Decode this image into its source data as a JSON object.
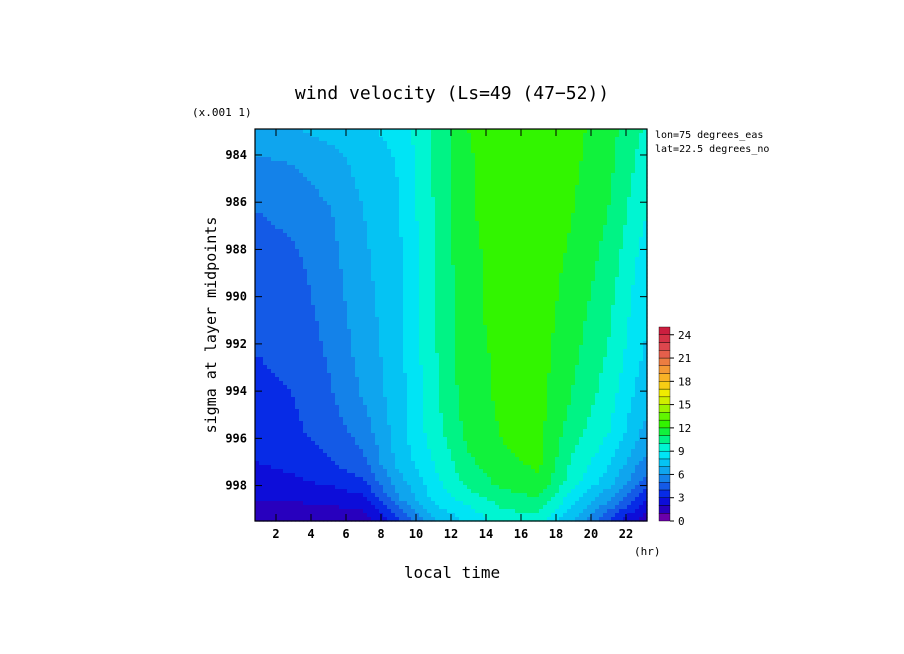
{
  "chart_data": {
    "type": "heatmap",
    "title": "wind velocity (Ls=49 (47−52))",
    "xlabel": "local time",
    "x_unit": "(hr)",
    "ylabel": "sigma at layer midpoints",
    "y_scale_note": "(x.001 1)",
    "annotations": [
      "lon=75 degrees_eas",
      "lat=22.5 degrees_no"
    ],
    "x_ticks": [
      "2",
      "4",
      "6",
      "8",
      "10",
      "12",
      "14",
      "16",
      "18",
      "20",
      "22"
    ],
    "y_ticks": [
      "984",
      "986",
      "988",
      "990",
      "992",
      "994",
      "996",
      "998"
    ],
    "xlim": [
      0.8,
      23.2
    ],
    "ylim": [
      999.5,
      982.9
    ],
    "colorbar": {
      "ticks": [
        "0",
        "3",
        "6",
        "9",
        "12",
        "15",
        "18",
        "21",
        "24"
      ],
      "range": [
        0,
        25
      ],
      "step": 1
    },
    "x": [
      1,
      3,
      5,
      7,
      9,
      11,
      13,
      15,
      17,
      19,
      21,
      23
    ],
    "y": [
      983,
      984.2,
      986.4,
      988.5,
      990.6,
      992.5,
      994.2,
      995.8,
      997,
      997.9,
      998.6,
      999.1,
      999.5
    ],
    "z": [
      [
        6.8,
        6.9,
        7.3,
        7.8,
        8.3,
        10.2,
        12.0,
        12.6,
        12.8,
        12.3,
        11.4,
        9.9
      ],
      [
        5.9,
        6.1,
        6.6,
        7.4,
        8.1,
        10.1,
        11.9,
        12.5,
        12.7,
        12.2,
        11.3,
        9.6
      ],
      [
        5.0,
        5.3,
        5.9,
        7.0,
        7.9,
        10.0,
        11.9,
        12.4,
        12.6,
        12.0,
        11.0,
        9.1
      ],
      [
        4.5,
        4.8,
        5.6,
        6.8,
        7.8,
        10.0,
        11.8,
        12.3,
        12.5,
        11.8,
        10.6,
        8.6
      ],
      [
        4.2,
        4.4,
        5.4,
        6.6,
        7.7,
        9.9,
        11.8,
        12.3,
        12.5,
        11.5,
        10.2,
        8.2
      ],
      [
        4.0,
        4.2,
        5.1,
        6.4,
        7.6,
        9.8,
        11.7,
        12.2,
        12.4,
        11.2,
        9.9,
        7.9
      ],
      [
        3.8,
        4.0,
        4.8,
        6.1,
        7.6,
        9.7,
        11.6,
        12.2,
        12.4,
        10.9,
        9.5,
        7.4
      ],
      [
        3.4,
        3.8,
        4.4,
        5.4,
        7.5,
        9.5,
        11.3,
        12.1,
        12.3,
        10.4,
        9.0,
        6.8
      ],
      [
        3.0,
        3.3,
        3.9,
        4.8,
        7.3,
        9.0,
        10.8,
        11.8,
        12.2,
        9.8,
        8.2,
        5.8
      ],
      [
        2.6,
        2.8,
        3.1,
        3.8,
        6.5,
        8.6,
        10.3,
        11.3,
        11.8,
        9.3,
        7.4,
        4.7
      ],
      [
        2.0,
        2.1,
        2.3,
        2.6,
        5.8,
        8.2,
        9.4,
        10.5,
        10.9,
        8.3,
        6.1,
        3.2
      ],
      [
        1.6,
        1.6,
        1.7,
        1.9,
        4.6,
        7.5,
        8.7,
        9.9,
        10.1,
        7.6,
        4.9,
        2.2
      ],
      [
        1.2,
        1.2,
        1.3,
        1.4,
        3.6,
        6.9,
        8.2,
        9.5,
        9.6,
        6.9,
        3.9,
        1.4
      ]
    ]
  }
}
